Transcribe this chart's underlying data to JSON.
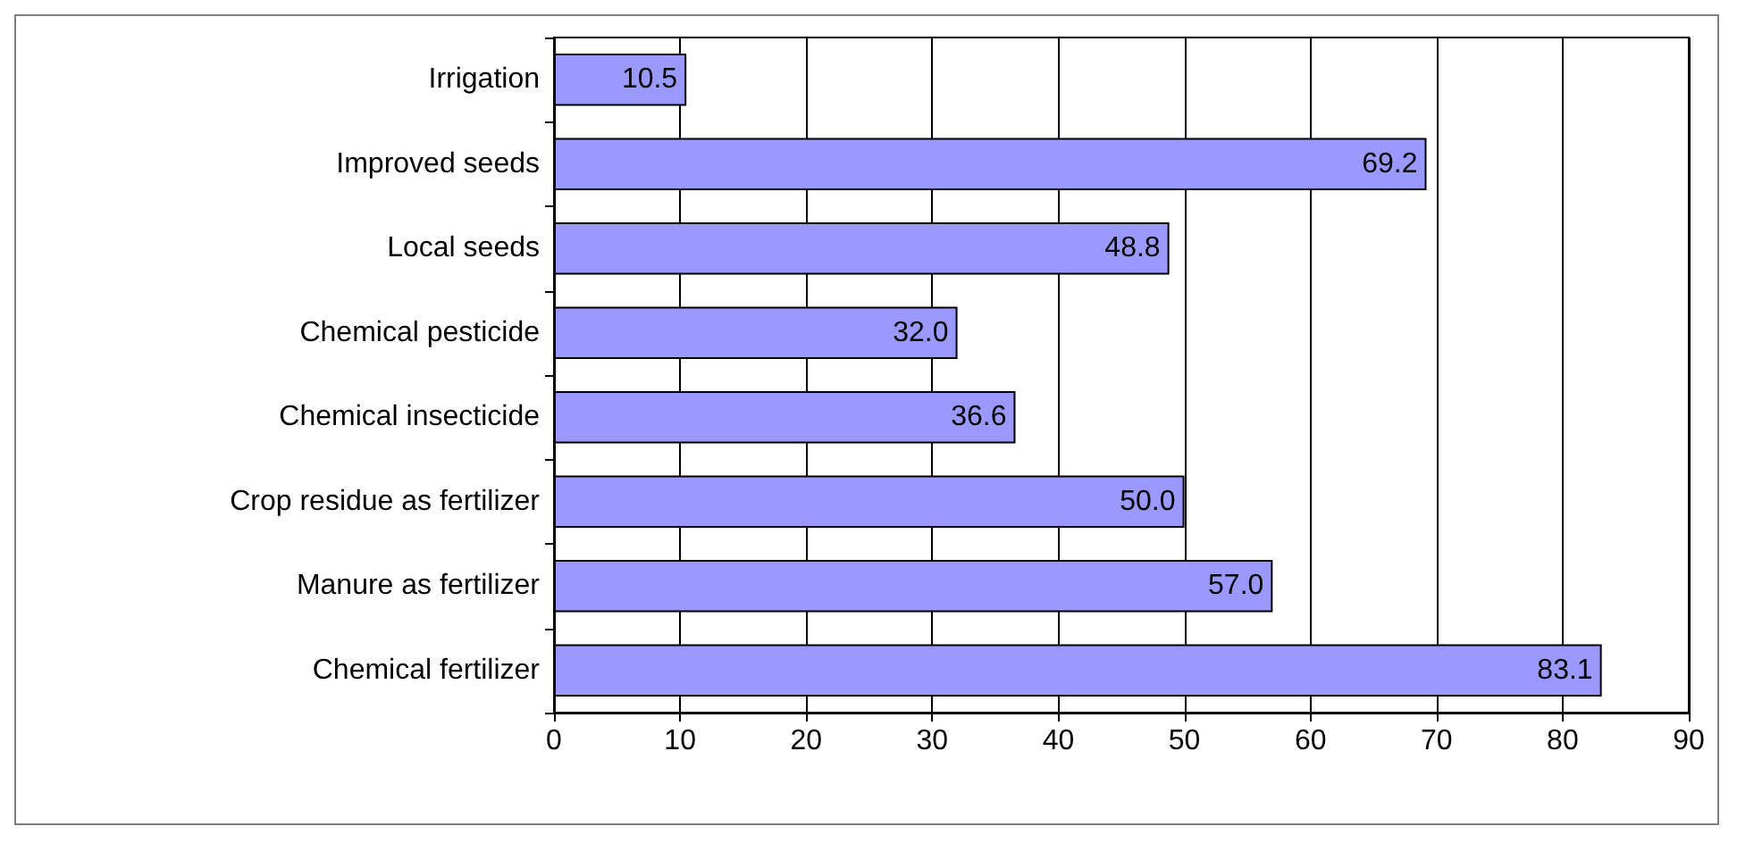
{
  "chart_data": {
    "type": "bar",
    "orientation": "horizontal",
    "categories": [
      "Irrigation",
      "Improved seeds",
      "Local seeds",
      "Chemical pesticide",
      "Chemical insecticide",
      "Crop residue as fertilizer",
      "Manure as fertilizer",
      "Chemical fertilizer"
    ],
    "values": [
      10.5,
      69.2,
      48.8,
      32.0,
      36.6,
      50.0,
      57.0,
      83.1
    ],
    "value_labels": [
      "10.5",
      "69.2",
      "48.8",
      "32.0",
      "36.6",
      "50.0",
      "57.0",
      "83.1"
    ],
    "color": "#9999ff",
    "xlim": [
      0,
      90
    ],
    "xticks": [
      0,
      10,
      20,
      30,
      40,
      50,
      60,
      70,
      80,
      90
    ],
    "grid": "x"
  }
}
